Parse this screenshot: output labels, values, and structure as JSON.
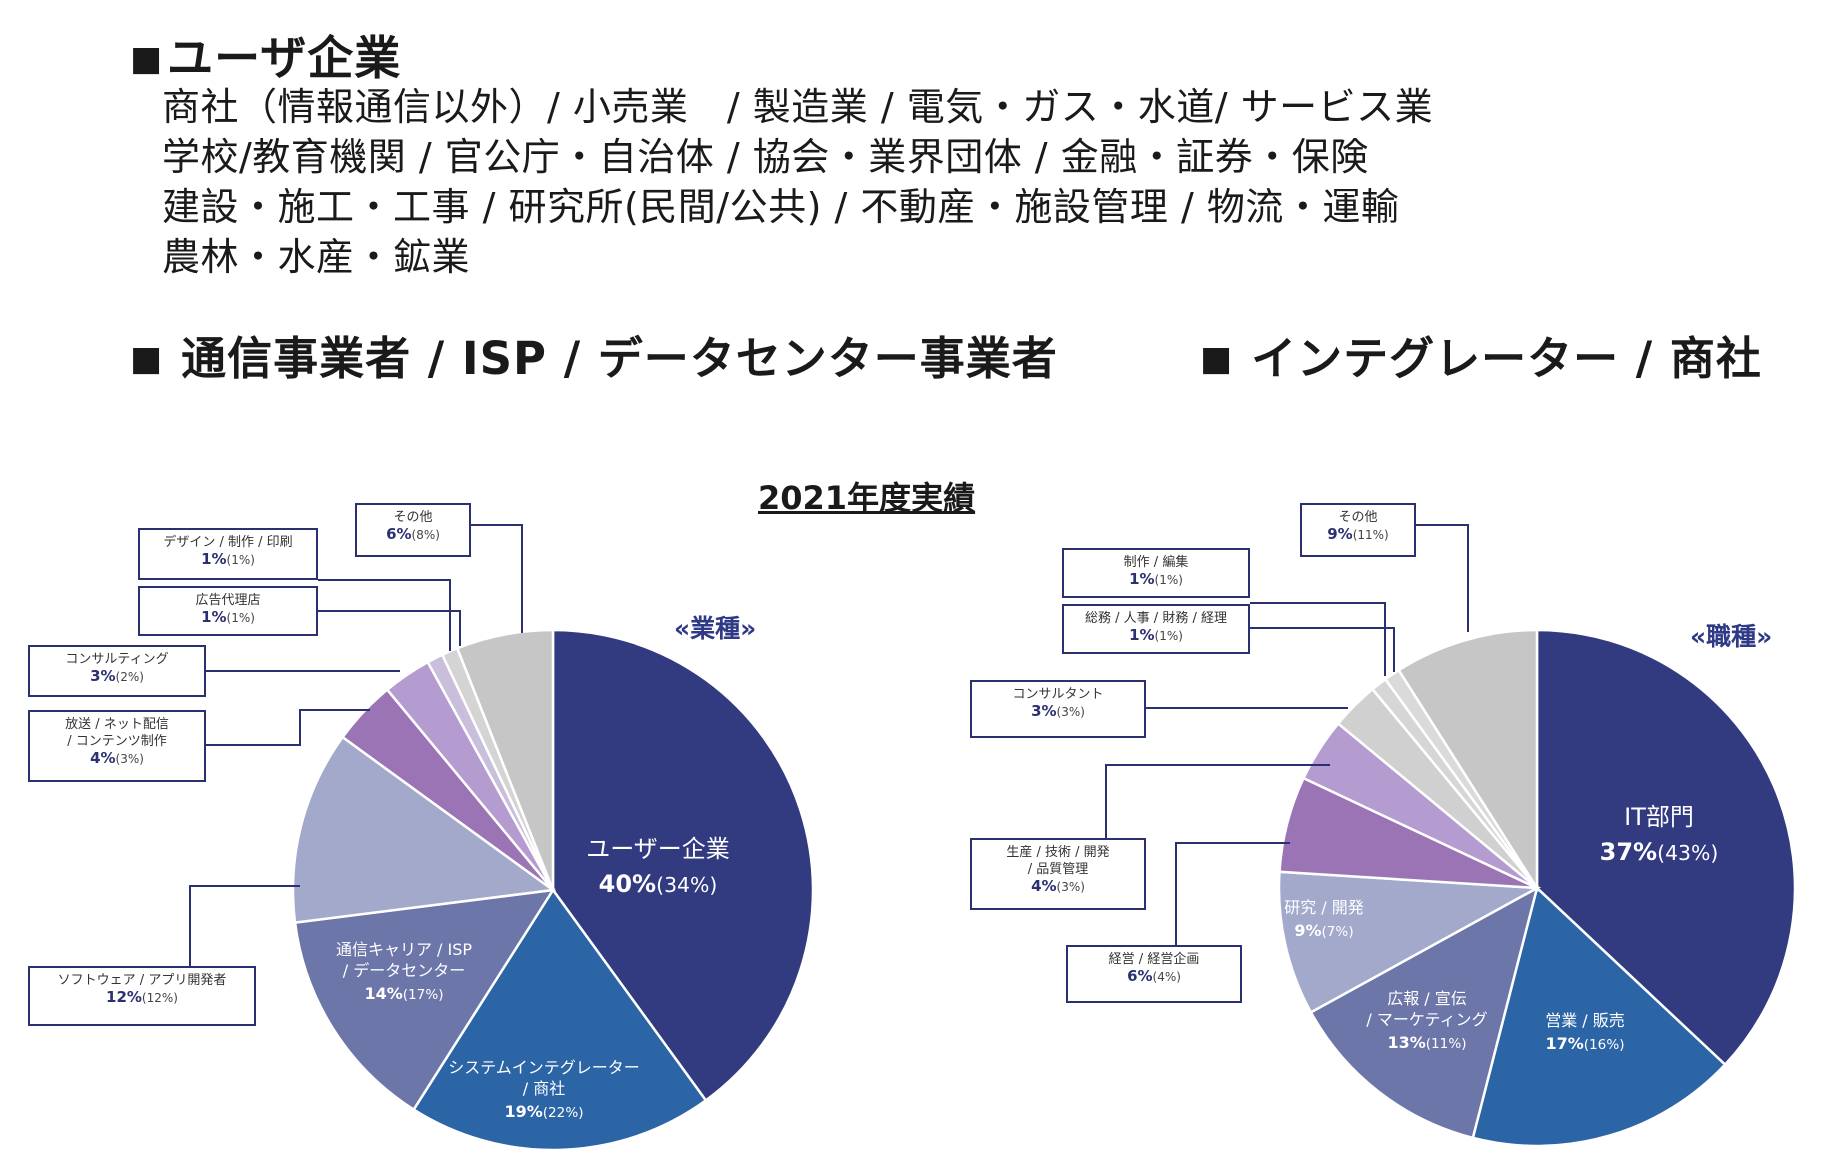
{
  "header": {
    "square": "■",
    "user_title": "ユーザ企業",
    "user_lines": [
      "商社（情報通信以外）/ 小売業　/ 製造業 / 電気・ガス・水道/ サービス業",
      "学校/教育機関 / 官公庁・自治体 / 協会・業界団体 / 金融・証券・保険",
      "建設・施工・工事 / 研究所(民間/公共) / 不動産・施設管理 / 物流・運輸",
      "農林・水産・鉱業"
    ],
    "telecom_title": "通信事業者 / ISP / データセンター事業者",
    "integrator_title": "インテグレーター / 商社"
  },
  "chart_title": "2021年度実績",
  "chart_data": [
    {
      "type": "pie",
      "title": "«業種»",
      "slices": [
        {
          "label": "ユーザー企業",
          "value": 40,
          "prev": "(34%)",
          "color": "#323a80"
        },
        {
          "label": "システムインテグレーター / 商社",
          "value": 19,
          "prev": "(22%)",
          "color": "#2c65a6"
        },
        {
          "label": "通信キャリア / ISP / データセンター",
          "value": 14,
          "prev": "(17%)",
          "color": "#6d76a8"
        },
        {
          "label": "ソフトウェア / アプリ開発者",
          "value": 12,
          "prev": "(12%)",
          "color": "#a2a9cb"
        },
        {
          "label": "放送 / ネット配信 / コンテンツ制作",
          "value": 4,
          "prev": "(3%)",
          "color": "#9b74b5"
        },
        {
          "label": "コンサルティング",
          "value": 3,
          "prev": "(2%)",
          "color": "#b49bd0"
        },
        {
          "label": "広告代理店",
          "value": 1,
          "prev": "(1%)",
          "color": "#c9bfdc"
        },
        {
          "label": "デザイン / 制作 / 印刷",
          "value": 1,
          "prev": "(1%)",
          "color": "#d4d4d4"
        },
        {
          "label": "その他",
          "value": 6,
          "prev": "(8%)",
          "color": "#c6c6c6"
        }
      ]
    },
    {
      "type": "pie",
      "title": "«職種»",
      "slices": [
        {
          "label": "IT部門",
          "value": 37,
          "prev": "(43%)",
          "color": "#323a80"
        },
        {
          "label": "営業 / 販売",
          "value": 17,
          "prev": "(16%)",
          "color": "#2c65a6"
        },
        {
          "label": "広報 / 宣伝 / マーケティング",
          "value": 13,
          "prev": "(11%)",
          "color": "#6d76a8"
        },
        {
          "label": "研究 / 開発",
          "value": 9,
          "prev": "(7%)",
          "color": "#a2a9cb"
        },
        {
          "label": "経営 / 経営企画",
          "value": 6,
          "prev": "(4%)",
          "color": "#9b74b5"
        },
        {
          "label": "生産 / 技術 / 開発 / 品質管理",
          "value": 4,
          "prev": "(3%)",
          "color": "#b49bd0"
        },
        {
          "label": "コンサルタント",
          "value": 3,
          "prev": "(3%)",
          "color": "#d0d0d0"
        },
        {
          "label": "総務 / 人事 / 財務 / 経理",
          "value": 1,
          "prev": "(1%)",
          "color": "#d6d6d6"
        },
        {
          "label": "制作 / 編集",
          "value": 1,
          "prev": "(1%)",
          "color": "#dadada"
        },
        {
          "label": "その他",
          "value": 9,
          "prev": "(11%)",
          "color": "#c6c6c6"
        }
      ]
    }
  ],
  "pie1_inside": [
    {
      "lines": [
        "ユーザー企業"
      ],
      "pct": "40%",
      "prev": "(34%)"
    },
    {
      "lines": [
        "システムインテグレーター",
        "/ 商社"
      ],
      "pct": "19%",
      "prev": "(22%)"
    },
    {
      "lines": [
        "通信キャリア / ISP",
        "/ データセンター"
      ],
      "pct": "14%",
      "prev": "(17%)"
    }
  ],
  "pie1_callouts": [
    {
      "lines": [
        "その他"
      ],
      "pct": "6%",
      "prev": "(8%)"
    },
    {
      "lines": [
        "デザイン / 制作 / 印刷"
      ],
      "pct": "1%",
      "prev": "(1%)"
    },
    {
      "lines": [
        "広告代理店"
      ],
      "pct": "1%",
      "prev": "(1%)"
    },
    {
      "lines": [
        "コンサルティング"
      ],
      "pct": "3%",
      "prev": "(2%)"
    },
    {
      "lines": [
        "放送 / ネット配信",
        "/ コンテンツ制作"
      ],
      "pct": "4%",
      "prev": "(3%)"
    },
    {
      "lines": [
        "ソフトウェア / アプリ開発者"
      ],
      "pct": "12%",
      "prev": "(12%)"
    }
  ],
  "pie2_inside": [
    {
      "lines": [
        "IT部門"
      ],
      "pct": "37%",
      "prev": "(43%)"
    },
    {
      "lines": [
        "営業 / 販売"
      ],
      "pct": "17%",
      "prev": "(16%)"
    },
    {
      "lines": [
        "広報 / 宣伝",
        "/ マーケティング"
      ],
      "pct": "13%",
      "prev": "(11%)"
    },
    {
      "lines": [
        "研究 / 開発"
      ],
      "pct": "9%",
      "prev": "(7%)"
    }
  ],
  "pie2_callouts": [
    {
      "lines": [
        "その他"
      ],
      "pct": "9%",
      "prev": "(11%)"
    },
    {
      "lines": [
        "制作 / 編集"
      ],
      "pct": "1%",
      "prev": "(1%)"
    },
    {
      "lines": [
        "総務 / 人事 / 財務 / 経理"
      ],
      "pct": "1%",
      "prev": "(1%)"
    },
    {
      "lines": [
        "コンサルタント"
      ],
      "pct": "3%",
      "prev": "(3%)"
    },
    {
      "lines": [
        "生産 / 技術 / 開発",
        "/ 品質管理"
      ],
      "pct": "4%",
      "prev": "(3%)"
    },
    {
      "lines": [
        "経営 / 経営企画"
      ],
      "pct": "6%",
      "prev": "(4%)"
    }
  ]
}
